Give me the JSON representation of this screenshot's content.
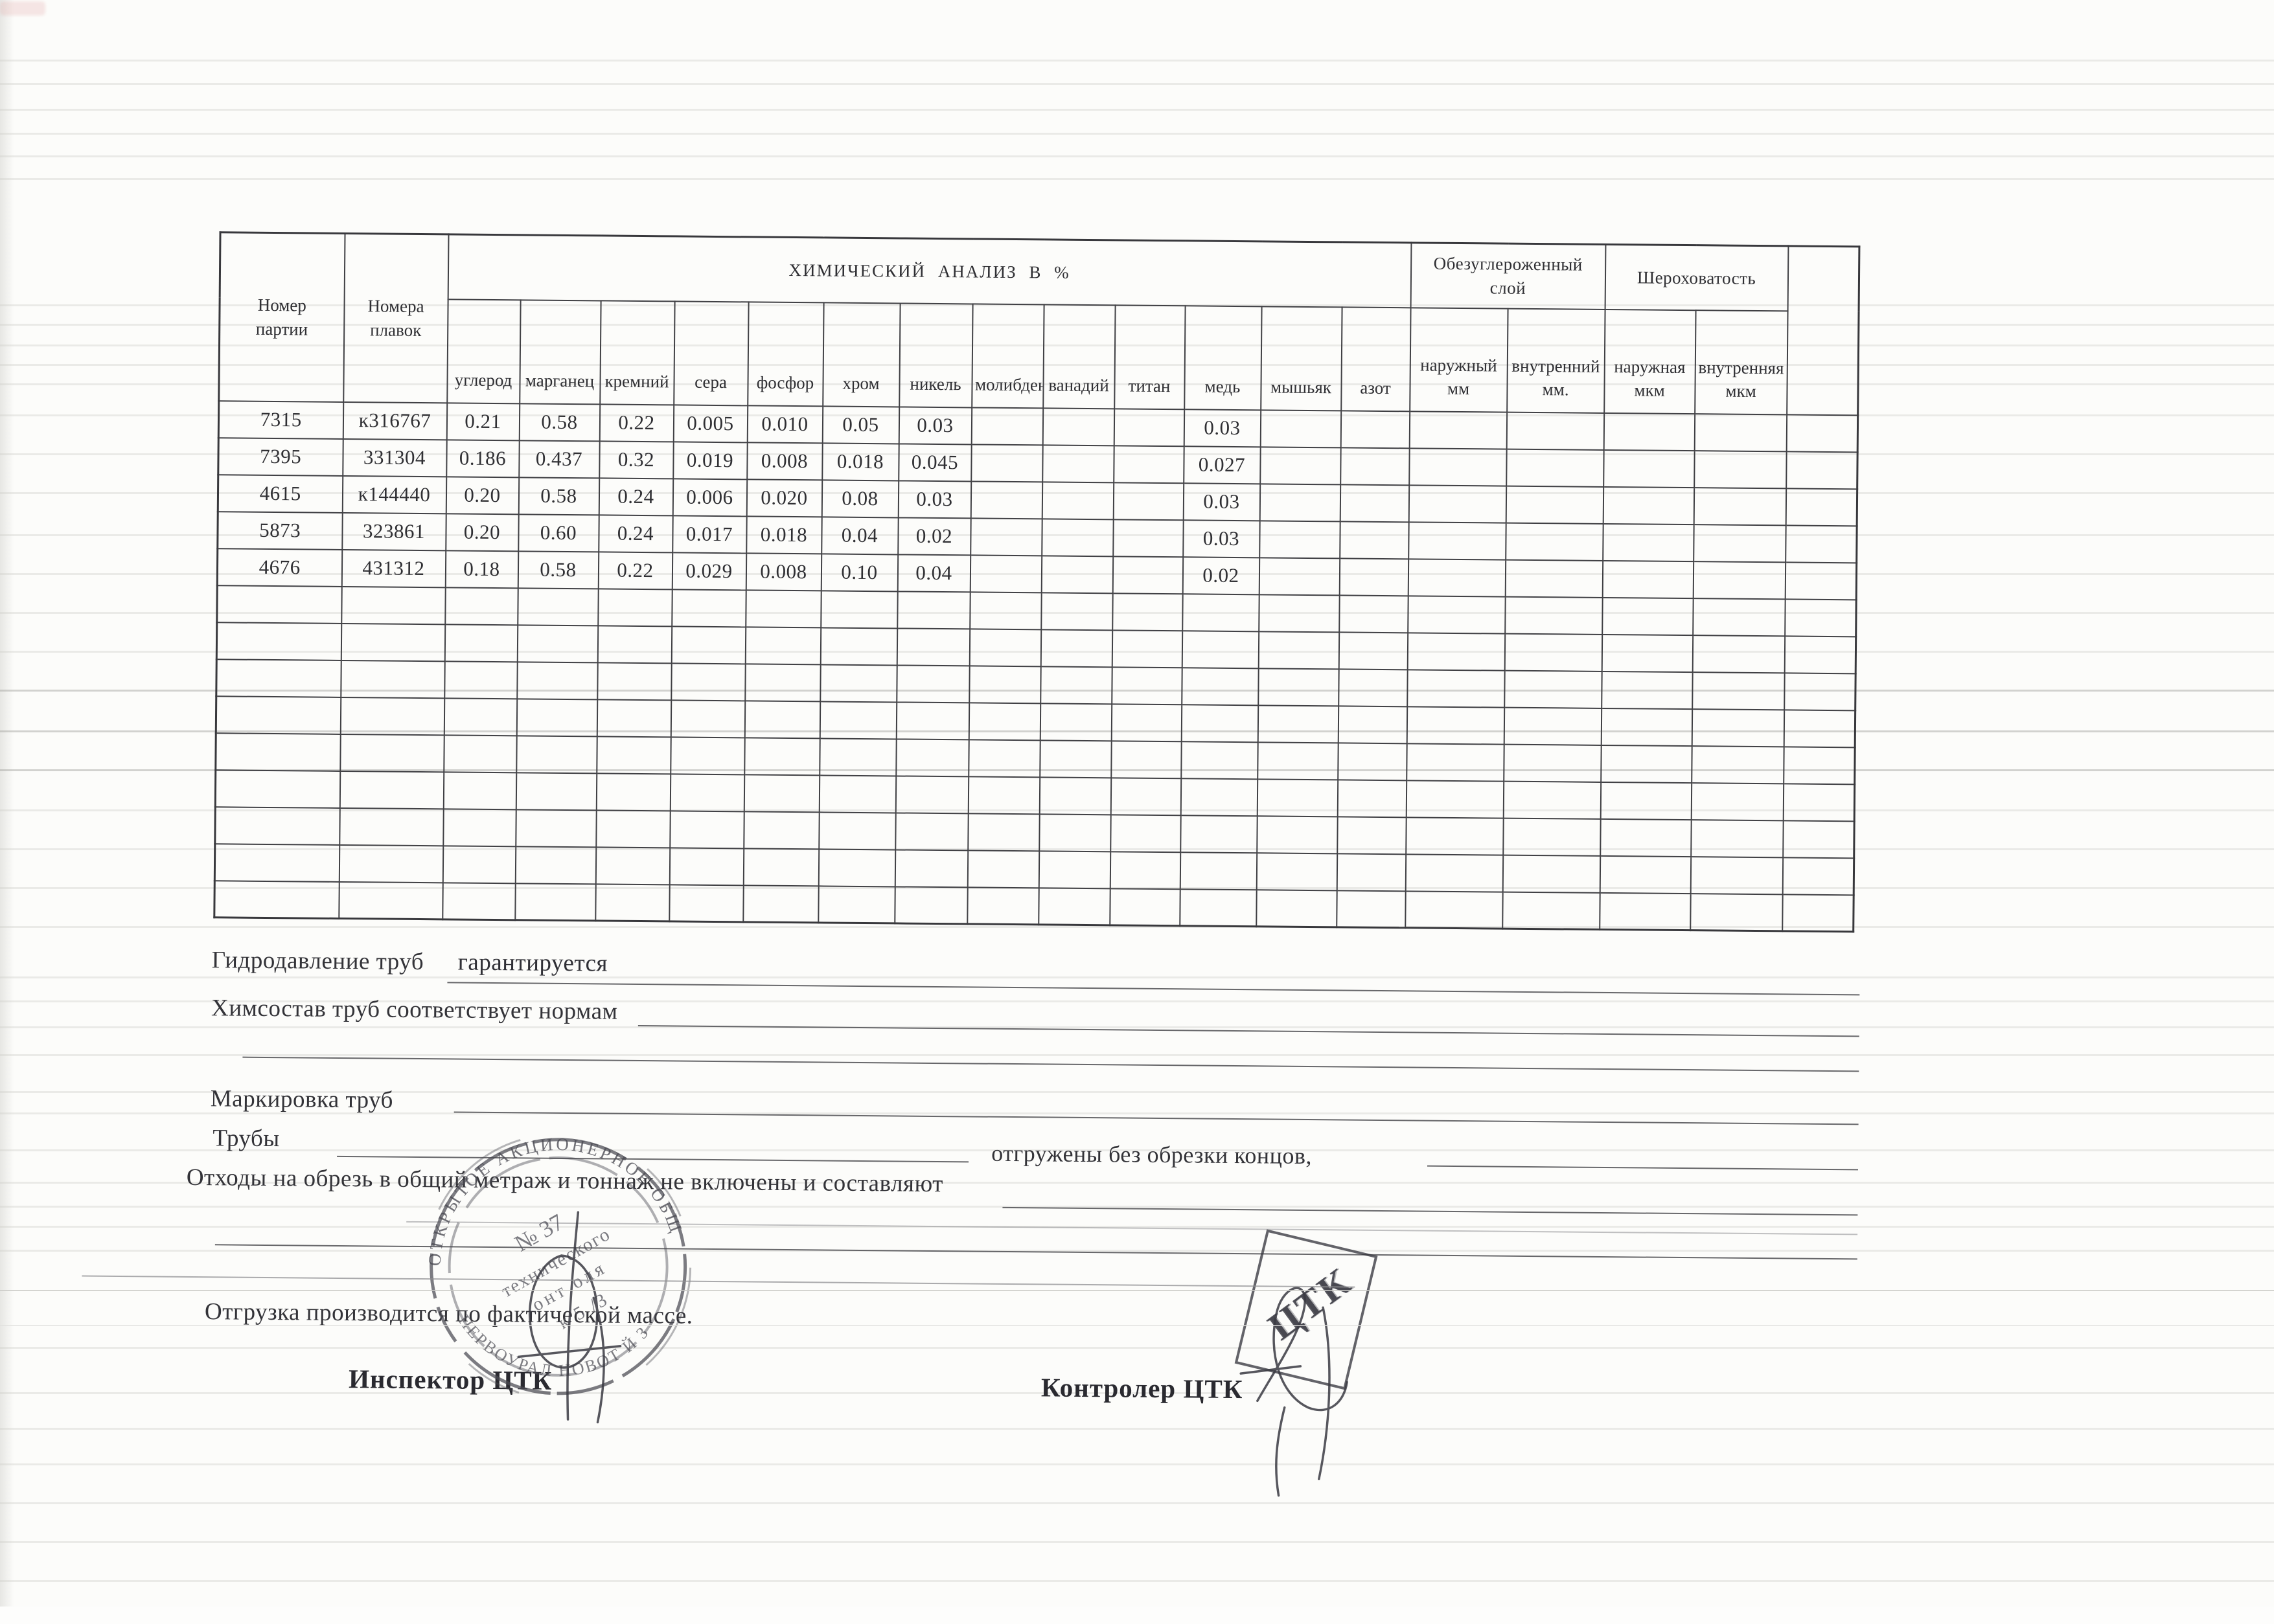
{
  "table": {
    "col_batch": "Номер\nпартии",
    "col_heats": "Номера\nплавок",
    "group_chem": "ХИМИЧЕСКИЙ АНАЛИЗ  В  %",
    "group_decarb": "Обезуглероженный\nслой",
    "group_rough": "Шероховатость",
    "chem_cols": [
      "углерод",
      "марганец",
      "кремний",
      "сера",
      "фосфор",
      "хром",
      "никель",
      "молибден",
      "ванадий",
      "титан",
      "медь",
      "мышьяк",
      "азот"
    ],
    "decarb_cols": [
      "наружный\nмм",
      "внутренний\nмм."
    ],
    "rough_cols": [
      "наружная\nмкм",
      "внутренняя\nмкм"
    ],
    "rows": [
      {
        "batch": "7315",
        "heat": "к316767",
        "values": [
          "0.21",
          "0.58",
          "0.22",
          "0.005",
          "0.010",
          "0.05",
          "0.03",
          "",
          "",
          "",
          "0.03",
          "",
          ""
        ],
        "decarb": [
          "",
          ""
        ],
        "rough": [
          "",
          ""
        ]
      },
      {
        "batch": "7395",
        "heat": "331304",
        "values": [
          "0.186",
          "0.437",
          "0.32",
          "0.019",
          "0.008",
          "0.018",
          "0.045",
          "",
          "",
          "",
          "0.027",
          "",
          ""
        ],
        "decarb": [
          "",
          ""
        ],
        "rough": [
          "",
          ""
        ]
      },
      {
        "batch": "4615",
        "heat": "к144440",
        "values": [
          "0.20",
          "0.58",
          "0.24",
          "0.006",
          "0.020",
          "0.08",
          "0.03",
          "",
          "",
          "",
          "0.03",
          "",
          ""
        ],
        "decarb": [
          "",
          ""
        ],
        "rough": [
          "",
          ""
        ]
      },
      {
        "batch": "5873",
        "heat": "323861",
        "values": [
          "0.20",
          "0.60",
          "0.24",
          "0.017",
          "0.018",
          "0.04",
          "0.02",
          "",
          "",
          "",
          "0.03",
          "",
          ""
        ],
        "decarb": [
          "",
          ""
        ],
        "rough": [
          "",
          ""
        ]
      },
      {
        "batch": "4676",
        "heat": "431312",
        "values": [
          "0.18",
          "0.58",
          "0.22",
          "0.029",
          "0.008",
          "0.10",
          "0.04",
          "",
          "",
          "",
          "0.02",
          "",
          ""
        ],
        "decarb": [
          "",
          ""
        ],
        "rough": [
          "",
          ""
        ]
      }
    ],
    "empty_row_count": 9
  },
  "notes": {
    "hydro_label": "Гидродавление труб",
    "hydro_value": "гарантируется",
    "chem_note": "Химсостав труб соответствует нормам",
    "marking_label": "Маркировка труб",
    "pipes_label": "Трубы",
    "shipped_note": "отгружены без обрезки концов,",
    "waste_note": "Отходы на обрезь в общий метраж и тоннаж не включены и составляют",
    "shipping_note": "Отгрузка производится по фактической массе.",
    "inspector_label": "Инспектор  ЦТК",
    "controller_label": "Контролер ЦТК"
  },
  "stamps": {
    "round": {
      "arc_top": "ОТКРЫТОЕ АКЦИОНЕРНОЕ ОБЩ",
      "arc_bottom": "ПЕРВОУРАЛ      НОВОТ     Й З",
      "line1": "№ 37",
      "line2": "технического",
      "line3": "онт  оля",
      "line4": "к 5 /3"
    },
    "rect": {
      "label": "ЦТК"
    }
  },
  "ink_colors": {
    "table_ink": "#2f2f33",
    "note_ink": "#333338",
    "stamp_ink": "#4a4a52"
  }
}
